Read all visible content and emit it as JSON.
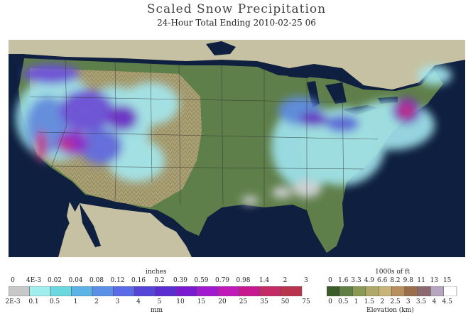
{
  "title": "Scaled Snow Precipitation",
  "subtitle": "24-Hour Total Ending 2010-02-25 06",
  "colors": {
    "ocean": "#0e1f3f",
    "land_foreign": "#c6c1a2",
    "lowland": "#5f7f4a",
    "mountain": "#b0a47a",
    "snow_light": "#a4e8f0",
    "snow_mid": "#5e8ee8",
    "snow_heavy": "#6a2fd0",
    "snow_extreme": "#c22c8c"
  },
  "precip_legend": {
    "top_label": "inches",
    "bottom_label": "mm",
    "top_ticks": [
      "0",
      "4E-3",
      "0.02",
      "0.04",
      "0.08",
      "0.12",
      "0.16",
      "0.2",
      "0.39",
      "0.59",
      "0.79",
      "0.98",
      "1.4",
      "2",
      "3"
    ],
    "bottom_ticks": [
      "2E-3",
      "0.1",
      "0.5",
      "1",
      "2",
      "3",
      "4",
      "5",
      "10",
      "15",
      "20",
      "25",
      "35",
      "50",
      "75"
    ],
    "swatches": [
      "#c8c8c8",
      "#a2eeee",
      "#6bd8e0",
      "#5cb3e6",
      "#5b8ee6",
      "#5b6ae6",
      "#5545d8",
      "#5a2ed0",
      "#7a1ad0",
      "#a21ad0",
      "#c01ab8",
      "#c81a8e",
      "#c42a66",
      "#b8344c"
    ]
  },
  "elev_legend": {
    "top_label": "1000s of ft",
    "bottom_label": "Elevation (km)",
    "top_ticks": [
      "0",
      "1.6",
      "3.3",
      "4.9",
      "6.6",
      "8.2",
      "9.8",
      "11",
      "13",
      "15"
    ],
    "bottom_ticks": [
      "0",
      "0.5",
      "1",
      "1.5",
      "2",
      "2.5",
      "3",
      "3.5",
      "4",
      "4.5"
    ],
    "swatches": [
      "#3a5a28",
      "#5f7f45",
      "#8a9a55",
      "#b0a868",
      "#c8b478",
      "#b89060",
      "#9a6e4c",
      "#8c6a70",
      "#b8a6c0",
      "#ffffff"
    ]
  }
}
